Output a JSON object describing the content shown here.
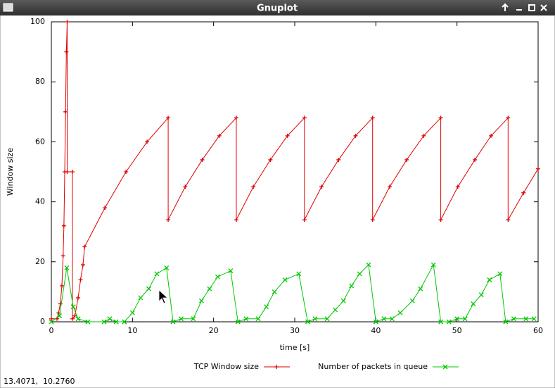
{
  "window": {
    "title": "Gnuplot",
    "status": "13.4071,  10.2760"
  },
  "chart_data": {
    "type": "line",
    "xlabel": "time [s]",
    "ylabel": "Window size",
    "xlim": [
      0,
      60
    ],
    "xticks": [
      0,
      10,
      20,
      30,
      40,
      50,
      60
    ],
    "ylim": [
      0,
      100
    ],
    "yticks": [
      0,
      20,
      40,
      60,
      80,
      100
    ],
    "legend": "bottom",
    "series": [
      {
        "name": "TCP Window size",
        "color": "#e00000",
        "marker": "plus",
        "x": [
          0,
          0.7,
          0.9,
          1.1,
          1.3,
          1.45,
          1.55,
          1.65,
          1.75,
          1.85,
          1.95,
          1.95,
          2.6,
          2.6,
          2.9,
          3.3,
          3.6,
          3.9,
          4.1,
          6.6,
          9.2,
          11.8,
          14.4,
          14.4,
          16.5,
          18.6,
          20.7,
          22.8,
          22.8,
          24.9,
          27.0,
          29.1,
          31.2,
          31.2,
          33.3,
          35.4,
          37.5,
          39.6,
          39.6,
          41.7,
          43.8,
          45.9,
          48.0,
          48.0,
          50.1,
          52.2,
          54.2,
          56.3,
          56.3,
          58.2,
          60
        ],
        "values": [
          1,
          1,
          3,
          6,
          12,
          22,
          32,
          50,
          70,
          90,
          100,
          50,
          50,
          1,
          2,
          8,
          14,
          19,
          25,
          38,
          50,
          60,
          68,
          34,
          45,
          54,
          62,
          68,
          34,
          45,
          54,
          62,
          68,
          34,
          45,
          54,
          62,
          68,
          34,
          45,
          54,
          62,
          68,
          34,
          45,
          54,
          62,
          68,
          34,
          43,
          51
        ]
      },
      {
        "name": "Number of packets in queue",
        "color": "#00c800",
        "marker": "cross",
        "x": [
          0,
          1.0,
          1.9,
          2.7,
          3.3,
          4.5,
          6.5,
          7.2,
          8,
          9,
          10,
          11,
          12,
          13,
          14.2,
          15,
          16,
          17.5,
          18.5,
          19.5,
          20.5,
          22.1,
          23,
          24,
          25.5,
          26.5,
          27.5,
          28.8,
          30.5,
          31.6,
          32.5,
          34,
          35,
          36,
          37,
          38,
          39.1,
          40,
          41,
          42,
          43,
          44.5,
          45.5,
          47.1,
          48,
          49,
          50,
          51,
          52,
          53,
          54,
          55.3,
          56,
          57,
          58.5,
          59.5
        ],
        "values": [
          0,
          2,
          18,
          5,
          1,
          0,
          0,
          1,
          0,
          0,
          3,
          8,
          11,
          16,
          18,
          0,
          1,
          1,
          7,
          11,
          15,
          17,
          0,
          1,
          1,
          5,
          10,
          14,
          16,
          0,
          1,
          1,
          4,
          7,
          12,
          16,
          19,
          0,
          1,
          1,
          3,
          7,
          11,
          19,
          0,
          0,
          1,
          1,
          6,
          9,
          14,
          16,
          0,
          1,
          1,
          1
        ]
      }
    ]
  }
}
